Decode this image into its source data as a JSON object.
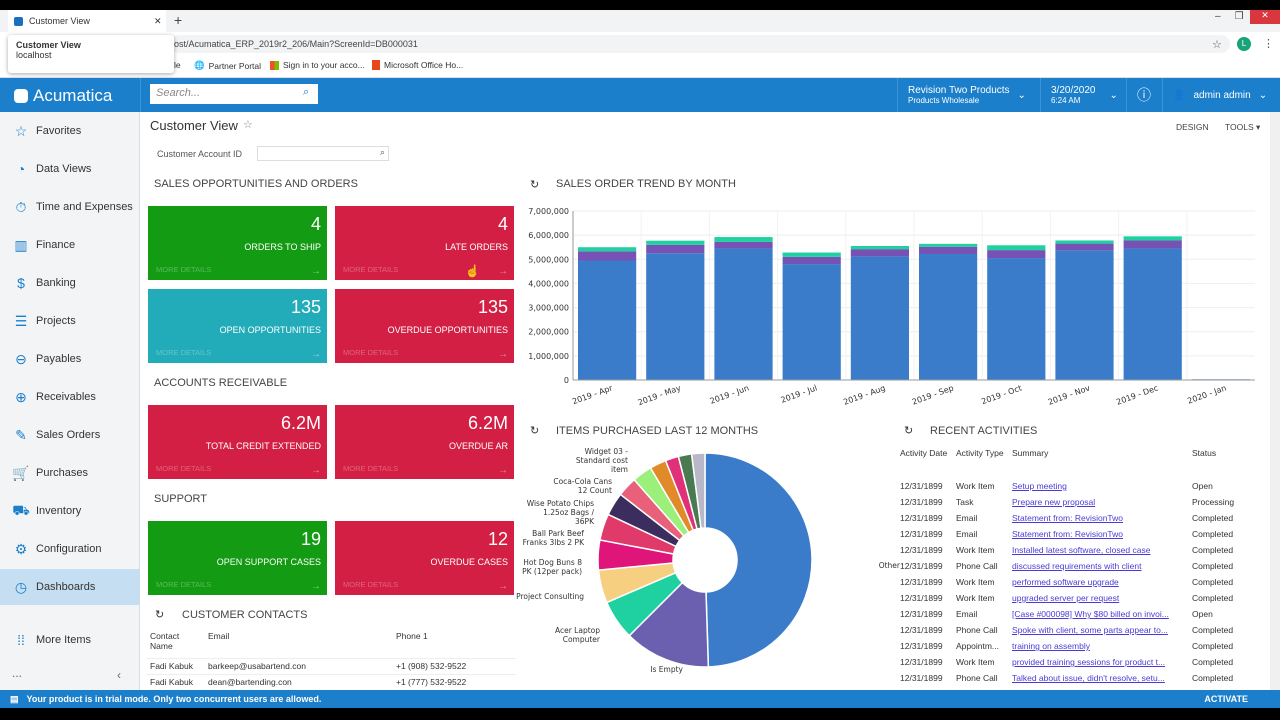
{
  "browser": {
    "tab_title": "Customer View",
    "popup_title": "Customer View",
    "popup_host": "localhost",
    "url": "ost/Acumatica_ERP_2019r2_206/Main?ScreenId=DB000031",
    "bookmarks": [
      "le",
      "Partner Portal",
      "Sign in to your acco...",
      "Microsoft Office Ho..."
    ],
    "profile_initial": "L"
  },
  "header": {
    "logo": "Acumatica",
    "search_placeholder": "Search...",
    "company": "Revision Two Products",
    "branch": "Products Wholesale",
    "date": "3/20/2020",
    "time": "6:24 AM",
    "user": "admin admin"
  },
  "sidebar": {
    "items": [
      {
        "label": "Favorites",
        "icon": "☆"
      },
      {
        "label": "Data Views",
        "icon": "◔"
      },
      {
        "label": "Time and Expenses",
        "icon": "⏱"
      },
      {
        "label": "Finance",
        "icon": "▥"
      },
      {
        "label": "Banking",
        "icon": "$"
      },
      {
        "label": "Projects",
        "icon": "☰"
      },
      {
        "label": "Payables",
        "icon": "⊖"
      },
      {
        "label": "Receivables",
        "icon": "⊕"
      },
      {
        "label": "Sales Orders",
        "icon": "✎"
      },
      {
        "label": "Purchases",
        "icon": "🛒"
      },
      {
        "label": "Inventory",
        "icon": "⛟"
      },
      {
        "label": "Configuration",
        "icon": "⚙"
      },
      {
        "label": "Dashboards",
        "icon": "◷"
      }
    ],
    "more": "More Items",
    "ellipsis": "...",
    "collapse": "‹"
  },
  "page": {
    "title": "Customer View",
    "design": "DESIGN",
    "tools": "TOOLS",
    "account_label": "Customer Account ID",
    "account_value": ""
  },
  "sections": {
    "sales": "SALES OPPORTUNITIES AND ORDERS",
    "ar": "ACCOUNTS RECEIVABLE",
    "support": "SUPPORT",
    "contacts": "CUSTOMER CONTACTS",
    "trend": "SALES ORDER TREND BY MONTH",
    "items": "ITEMS PURCHASED LAST 12 MONTHS",
    "activities": "RECENT ACTIVITIES"
  },
  "tiles": [
    {
      "value": "4",
      "label": "ORDERS TO SHIP",
      "more": "MORE DETAILS",
      "color": "green"
    },
    {
      "value": "4",
      "label": "LATE ORDERS",
      "more": "MORE DETAILS",
      "color": "red"
    },
    {
      "value": "135",
      "label": "OPEN OPPORTUNITIES",
      "more": "MORE DETAILS",
      "color": "teal"
    },
    {
      "value": "135",
      "label": "OVERDUE OPPORTUNITIES",
      "more": "MORE DETAILS",
      "color": "red"
    },
    {
      "value": "6.2M",
      "label": "TOTAL CREDIT EXTENDED",
      "more": "MORE DETAILS",
      "color": "red"
    },
    {
      "value": "6.2M",
      "label": "OVERDUE AR",
      "more": "MORE DETAILS",
      "color": "red"
    },
    {
      "value": "19",
      "label": "OPEN SUPPORT CASES",
      "more": "MORE DETAILS",
      "color": "green"
    },
    {
      "value": "12",
      "label": "OVERDUE CASES",
      "more": "MORE DETAILS",
      "color": "red"
    }
  ],
  "contacts": {
    "headers": [
      "Contact Name",
      "Email",
      "Phone 1"
    ],
    "rows": [
      [
        "Fadi Kabuk",
        "barkeep@usabartend.con",
        "+1 (908) 532-9522"
      ],
      [
        "Fadi Kabuk",
        "dean@bartending.con",
        "+1 (777) 532-9522"
      ]
    ]
  },
  "activities": {
    "headers": [
      "Activity Date",
      "Activity Type",
      "Summary",
      "Status"
    ],
    "rows": [
      [
        "12/31/1899",
        "Work Item",
        "Setup meeting",
        "Open"
      ],
      [
        "12/31/1899",
        "Task",
        "Prepare new proposal",
        "Processing"
      ],
      [
        "12/31/1899",
        "Email",
        "Statement from: RevisionTwo",
        "Completed"
      ],
      [
        "12/31/1899",
        "Email",
        "Statement from: RevisionTwo",
        "Completed"
      ],
      [
        "12/31/1899",
        "Work Item",
        "Installed latest software, closed case",
        "Completed"
      ],
      [
        "12/31/1899",
        "Phone Call",
        "discussed requirements with client",
        "Completed"
      ],
      [
        "12/31/1899",
        "Work Item",
        "performed software upgrade",
        "Completed"
      ],
      [
        "12/31/1899",
        "Work Item",
        "upgraded server per request",
        "Completed"
      ],
      [
        "12/31/1899",
        "Email",
        "[Case #000098] Why $80 billed on invoi...",
        "Open"
      ],
      [
        "12/31/1899",
        "Phone Call",
        "Spoke with client, some parts appear to...",
        "Completed"
      ],
      [
        "12/31/1899",
        "Appointm...",
        "training on assembly",
        "Completed"
      ],
      [
        "12/31/1899",
        "Work Item",
        "provided training sessions for product t...",
        "Completed"
      ],
      [
        "12/31/1899",
        "Phone Call",
        "Talked about issue, didn't resolve, setu...",
        "Completed"
      ]
    ]
  },
  "status": {
    "message": "Your product is in trial mode. Only two concurrent users are allowed.",
    "activate": "ACTIVATE"
  },
  "chart_data": [
    {
      "type": "bar",
      "stacked": true,
      "title": "SALES ORDER TREND BY MONTH",
      "categories": [
        "2019 - Apr",
        "2019 - May",
        "2019 - Jun",
        "2019 - Jul",
        "2019 - Aug",
        "2019 - Sep",
        "2019 - Oct",
        "2019 - Nov",
        "2019 - Dec",
        "2020 - Jan"
      ],
      "series": [
        {
          "name": "series-1",
          "color": "#3a7bca",
          "values": [
            4950000,
            5250000,
            5450000,
            4800000,
            5120000,
            5220000,
            5050000,
            5370000,
            5450000,
            30000
          ]
        },
        {
          "name": "series-2",
          "color": "#7552b4",
          "values": [
            380000,
            350000,
            270000,
            300000,
            300000,
            300000,
            330000,
            280000,
            330000,
            0
          ]
        },
        {
          "name": "series-3",
          "color": "#20d0a0",
          "values": [
            170000,
            170000,
            200000,
            180000,
            130000,
            120000,
            200000,
            130000,
            170000,
            0
          ]
        }
      ],
      "yticks": [
        "0",
        "1,000,000",
        "2,000,000",
        "3,000,000",
        "4,000,000",
        "5,000,000",
        "6,000,000",
        "7,000,000"
      ],
      "ylim": [
        0,
        7000000
      ],
      "grid": true
    },
    {
      "type": "pie",
      "donut": true,
      "title": "ITEMS PURCHASED LAST 12 MONTHS",
      "slices": [
        {
          "label": "Other",
          "value": 49.5,
          "color": "#3a7cc9"
        },
        {
          "label": "Is Empty",
          "value": 13,
          "color": "#6b5fb0"
        },
        {
          "label": "Acer Laptop Computer",
          "value": 6,
          "color": "#1fd1a0"
        },
        {
          "label": "Project Consulting",
          "value": 5,
          "color": "#f7cf80"
        },
        {
          "label": "Hot Dog Buns 8 PK (12per pack)",
          "value": 4.5,
          "color": "#e0157a"
        },
        {
          "label": "Ball Park Beef Franks 3lbs 2 PK",
          "value": 4,
          "color": "#e03a6a"
        },
        {
          "label": "Wise Potato Chips 1.25oz Bags / 36PK",
          "value": 3.5,
          "color": "#3b2d5e"
        },
        {
          "label": "Coca-Cola Cans 12 Count",
          "value": 3,
          "color": "#e8607a"
        },
        {
          "label": "Widget 03 - Standard cost item",
          "value": 3,
          "color": "#9af07a"
        },
        {
          "label": "",
          "value": 2.5,
          "color": "#e08a2a"
        },
        {
          "label": "",
          "value": 2,
          "color": "#e0307a"
        },
        {
          "label": "",
          "value": 2,
          "color": "#4a7a50"
        },
        {
          "label": "",
          "value": 2,
          "color": "#b8b8c8"
        }
      ]
    }
  ]
}
